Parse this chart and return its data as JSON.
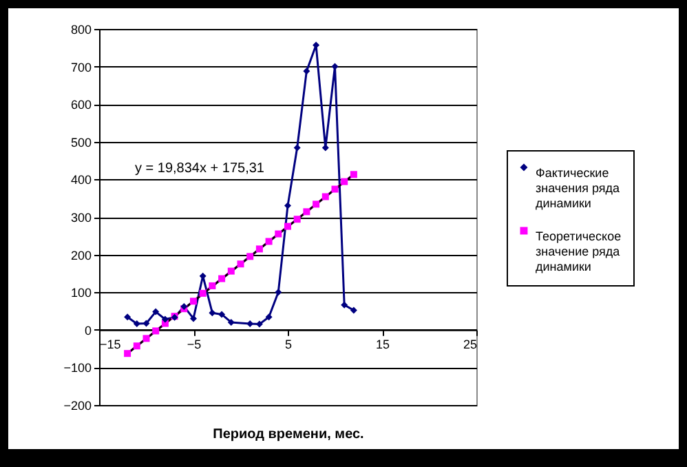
{
  "chart_data": {
    "type": "line",
    "xlabel": "Период времени, мес.",
    "series": [
      {
        "name": "Фактические значения ряда динамики",
        "color": "#000080",
        "marker": "diamond",
        "x": [
          -12,
          -11,
          -10,
          -9,
          -8,
          -7,
          -6,
          -5,
          -4,
          -3,
          -2,
          -1,
          1,
          2,
          3,
          4,
          5,
          6,
          7,
          8,
          9,
          10,
          11,
          12
        ],
        "values": [
          34,
          16,
          17,
          48,
          28,
          33,
          62,
          30,
          143,
          45,
          41,
          20,
          16,
          15,
          34,
          100,
          330,
          484,
          688,
          757,
          484,
          700,
          66,
          52
        ]
      },
      {
        "name": "Теоретическое значение ряда динамики",
        "color": "#ff00ff",
        "marker": "square",
        "x": [
          -12,
          -11,
          -10,
          -9,
          -8,
          -7,
          -6,
          -5,
          -4,
          -3,
          -2,
          -1,
          0,
          1,
          2,
          3,
          4,
          5,
          6,
          7,
          8,
          9,
          10,
          11,
          12
        ],
        "values": [
          -63,
          -43,
          -23,
          -3,
          17,
          36,
          56,
          76,
          97,
          117,
          136,
          156,
          175,
          195,
          215,
          235,
          255,
          275,
          294,
          314,
          334,
          354,
          374,
          394,
          413
        ]
      },
      {
        "type": "line",
        "color": "#000000",
        "marker": "none",
        "x": [
          -12,
          12
        ],
        "values": [
          -63,
          413
        ]
      }
    ],
    "xlim": [
      -15,
      25
    ],
    "xticks": [
      -15,
      -5,
      5,
      15,
      25
    ],
    "ylim": [
      -200,
      800
    ],
    "yticks": [
      -200,
      -100,
      0,
      100,
      200,
      300,
      400,
      500,
      600,
      700,
      800
    ],
    "grid": "y",
    "legend": "right",
    "line_style": "solid",
    "annotations": [
      "y = 19,834x + 175,31"
    ]
  }
}
